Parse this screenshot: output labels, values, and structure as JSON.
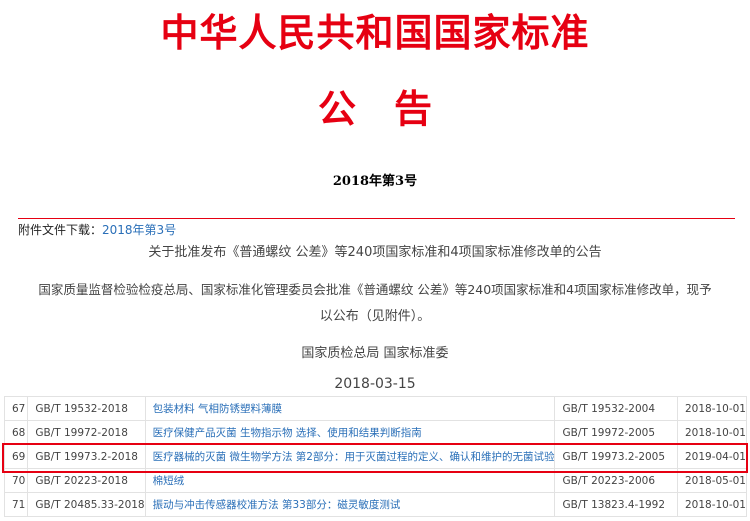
{
  "header": {
    "title": "中华人民共和国国家标准",
    "subtitle": "公　告",
    "number": "2018年第3号"
  },
  "attachment": {
    "label": "附件文件下载：",
    "link": "2018年第3号"
  },
  "notice": {
    "heading": "关于批准发布《普通螺纹 公差》等240项国家标准和4项国家标准修改单的公告",
    "body1": "国家质量监督检验检疫总局、国家标准化管理委员会批准《普通螺纹 公差》等240项国家标准和4项国家标准修改单，现予",
    "body2": "以公布（见附件）。",
    "issuer": "国家质检总局 国家标准委",
    "date": "2018-03-15"
  },
  "table": {
    "rows": [
      {
        "no": "67",
        "code": "GB/T 19532-2018",
        "title": "包装材料 气相防锈塑料薄膜",
        "replaces": "GB/T 19532-2004",
        "date": "2018-10-01"
      },
      {
        "no": "68",
        "code": "GB/T 19972-2018",
        "title": "医疗保健产品灭菌 生物指示物 选择、使用和结果判断指南",
        "replaces": "GB/T 19972-2005",
        "date": "2018-10-01"
      },
      {
        "no": "69",
        "code": "GB/T 19973.2-2018",
        "title": "医疗器械的灭菌 微生物学方法 第2部分：用于灭菌过程的定义、确认和维护的无菌试验",
        "replaces": "GB/T 19973.2-2005",
        "date": "2019-04-01"
      },
      {
        "no": "70",
        "code": "GB/T 20223-2018",
        "title": "棉短绒",
        "replaces": "GB/T 20223-2006",
        "date": "2018-05-01"
      },
      {
        "no": "71",
        "code": "GB/T 20485.33-2018",
        "title": "振动与冲击传感器校准方法 第33部分：磁灵敏度测试",
        "replaces": "GB/T 13823.4-1992",
        "date": "2018-10-01"
      }
    ]
  },
  "colors": {
    "accent": "#e60012",
    "link": "#2a6fb8"
  }
}
